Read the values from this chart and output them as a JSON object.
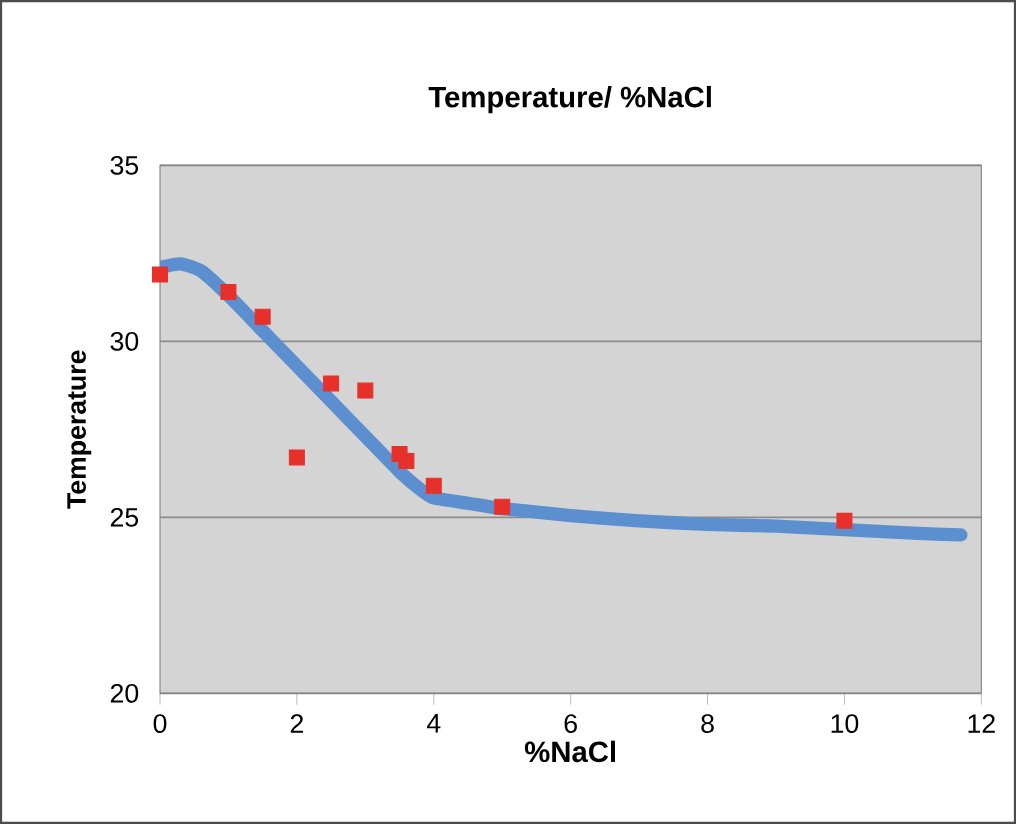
{
  "chart_data": {
    "type": "scatter",
    "title": "Temperature/ %NaCl",
    "xlabel": "%NaCl",
    "ylabel": "Temperature",
    "xlim": [
      0,
      12
    ],
    "xticks": [
      0,
      2,
      4,
      6,
      8,
      10,
      12
    ],
    "ylim": [
      20,
      35
    ],
    "yticks": [
      20,
      25,
      30,
      35
    ],
    "grid": "y",
    "series": [
      {
        "marker": "square",
        "color": "#e8302a",
        "x": [
          0,
          1,
          1.5,
          2,
          2.5,
          3,
          3.5,
          3.6,
          4,
          5,
          10
        ],
        "values": [
          31.9,
          31.4,
          30.7,
          26.7,
          28.8,
          28.6,
          26.8,
          26.6,
          25.9,
          25.3,
          24.9
        ]
      },
      {
        "type": "line",
        "line_style": "solid",
        "color": "#5b8fd0",
        "x": [
          0,
          0.3,
          0.6,
          1,
          1.5,
          2,
          2.5,
          3,
          3.5,
          3.8,
          4,
          4.5,
          5,
          6,
          7,
          8,
          9,
          10,
          11,
          11.7
        ],
        "values": [
          32.1,
          32.2,
          32.0,
          31.3,
          30.3,
          29.3,
          28.3,
          27.3,
          26.3,
          25.8,
          25.55,
          25.4,
          25.25,
          25.05,
          24.9,
          24.8,
          24.75,
          24.65,
          24.55,
          24.5
        ]
      }
    ]
  }
}
